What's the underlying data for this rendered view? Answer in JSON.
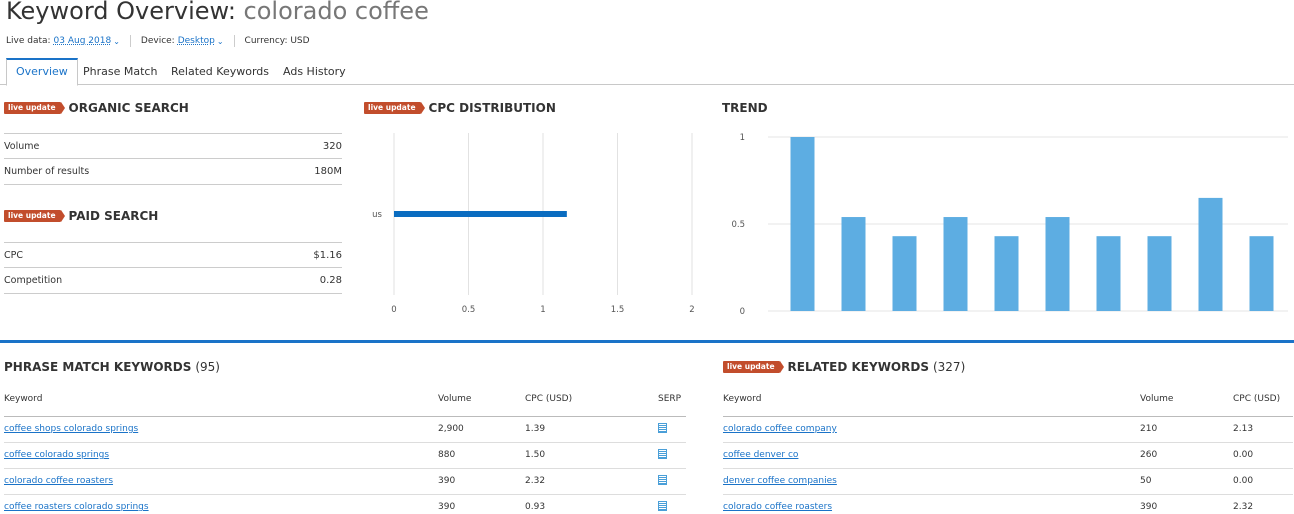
{
  "header": {
    "title_prefix": "Keyword Overview: ",
    "keyword": "colorado coffee",
    "live_data_label": "Live data:",
    "live_data_value": "03 Aug 2018",
    "device_label": "Device:",
    "device_value": "Desktop",
    "currency_label": "Currency: USD"
  },
  "tabs": [
    "Overview",
    "Phrase Match",
    "Related Keywords",
    "Ads History"
  ],
  "badge_text": "live update",
  "organic": {
    "title": "ORGANIC SEARCH",
    "rows": [
      {
        "label": "Volume",
        "value": "320"
      },
      {
        "label": "Number of results",
        "value": "180M"
      }
    ]
  },
  "paid": {
    "title": "PAID SEARCH",
    "rows": [
      {
        "label": "CPC",
        "value": "$1.16"
      },
      {
        "label": "Competition",
        "value": "0.28"
      }
    ]
  },
  "cpc_distribution": {
    "title": "CPC DISTRIBUTION"
  },
  "trend": {
    "title": "TREND"
  },
  "chart_data": [
    {
      "type": "bar",
      "orientation": "horizontal",
      "categories": [
        "us"
      ],
      "values": [
        1.16
      ],
      "xlim": [
        0,
        2
      ],
      "xticks": [
        "0",
        "0.5",
        "1",
        "1.5",
        "2"
      ],
      "grid": true,
      "color": "#0a6cc0"
    },
    {
      "type": "bar",
      "values": [
        1,
        0.54,
        0.43,
        0.54,
        0.43,
        0.54,
        0.43,
        0.43,
        0.65,
        0.43
      ],
      "ylim": [
        0,
        1
      ],
      "yticks": [
        "0",
        "0.5",
        "1"
      ],
      "grid": true,
      "color": "#5dade2"
    }
  ],
  "phrase_match": {
    "title": "PHRASE MATCH KEYWORDS",
    "count": "(95)",
    "headers": [
      "Keyword",
      "Volume",
      "CPC (USD)",
      "SERP"
    ],
    "rows": [
      {
        "keyword": "coffee shops colorado springs",
        "volume": "2,900",
        "cpc": "1.39"
      },
      {
        "keyword": "coffee colorado springs",
        "volume": "880",
        "cpc": "1.50"
      },
      {
        "keyword": "colorado coffee roasters",
        "volume": "390",
        "cpc": "2.32"
      },
      {
        "keyword": "coffee roasters colorado springs",
        "volume": "390",
        "cpc": "0.93"
      }
    ]
  },
  "related": {
    "title": "RELATED KEYWORDS",
    "count": "(327)",
    "headers": [
      "Keyword",
      "Volume",
      "CPC (USD)"
    ],
    "rows": [
      {
        "keyword": "colorado coffee company",
        "volume": "210",
        "cpc": "2.13"
      },
      {
        "keyword": "coffee denver co",
        "volume": "260",
        "cpc": "0.00"
      },
      {
        "keyword": "denver coffee companies",
        "volume": "50",
        "cpc": "0.00"
      },
      {
        "keyword": "colorado coffee roasters",
        "volume": "390",
        "cpc": "2.32"
      }
    ]
  }
}
